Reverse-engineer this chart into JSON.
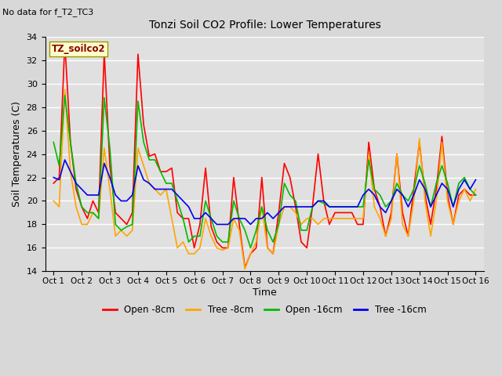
{
  "title": "Tonzi Soil CO2 Profile: Lower Temperatures",
  "subtitle": "No data for f_T2_TC3",
  "ylabel": "Soil Temperatures (C)",
  "xlabel": "Time",
  "annotation": "TZ_soilco2",
  "ylim": [
    14,
    34
  ],
  "yticks": [
    14,
    16,
    18,
    20,
    22,
    24,
    26,
    28,
    30,
    32,
    34
  ],
  "xtick_labels": [
    "Oct 1",
    "Oct 2",
    "Oct 3",
    "Oct 4",
    "Oct 5",
    "Oct 6",
    "Oct 7",
    "Oct 8",
    "Oct 9",
    "Oct 10",
    "Oct 11",
    "Oct 12",
    "Oct 13",
    "Oct 14",
    "Oct 15",
    "Oct 16"
  ],
  "background_color": "#d8d8d8",
  "plot_bg_color": "#e0e0e0",
  "grid_color": "#ffffff",
  "series": {
    "open_8cm": {
      "color": "#ff0000",
      "label": "Open -8cm",
      "linewidth": 1.2,
      "x": [
        0,
        0.2,
        0.4,
        0.6,
        0.8,
        1.0,
        1.2,
        1.4,
        1.6,
        1.8,
        2.0,
        2.2,
        2.4,
        2.6,
        2.8,
        3.0,
        3.2,
        3.4,
        3.6,
        3.8,
        4.0,
        4.2,
        4.4,
        4.6,
        4.8,
        5.0,
        5.2,
        5.4,
        5.6,
        5.8,
        6.0,
        6.2,
        6.4,
        6.6,
        6.8,
        7.0,
        7.2,
        7.4,
        7.6,
        7.8,
        8.0,
        8.2,
        8.4,
        8.6,
        8.8,
        9.0,
        9.2,
        9.4,
        9.6,
        9.8,
        10.0,
        10.2,
        10.4,
        10.6,
        10.8,
        11.0,
        11.2,
        11.4,
        11.6,
        11.8,
        12.0,
        12.2,
        12.4,
        12.6,
        12.8,
        13.0,
        13.2,
        13.4,
        13.6,
        13.8,
        14.0,
        14.2,
        14.4,
        14.6,
        14.8,
        15.0
      ],
      "y": [
        21.5,
        22.0,
        33.5,
        25.0,
        21.0,
        19.5,
        18.5,
        20.0,
        19.0,
        32.7,
        23.0,
        19.0,
        18.5,
        18.0,
        19.0,
        32.5,
        26.5,
        23.8,
        24.0,
        22.5,
        22.5,
        22.8,
        19.0,
        18.5,
        18.5,
        16.0,
        18.0,
        22.8,
        17.8,
        16.5,
        16.0,
        16.0,
        22.0,
        18.0,
        14.3,
        15.5,
        16.0,
        22.0,
        16.0,
        15.5,
        19.0,
        23.2,
        22.0,
        19.5,
        16.5,
        16.0,
        19.5,
        24.0,
        20.0,
        18.0,
        19.0,
        19.0,
        19.0,
        19.0,
        18.0,
        18.0,
        25.0,
        21.0,
        19.5,
        17.0,
        19.0,
        24.0,
        19.0,
        17.0,
        21.0,
        25.0,
        20.5,
        18.0,
        21.0,
        25.5,
        20.5,
        18.0,
        20.5,
        21.0,
        20.5,
        20.5
      ]
    },
    "tree_8cm": {
      "color": "#ffa500",
      "label": "Tree -8cm",
      "linewidth": 1.2,
      "x": [
        0,
        0.2,
        0.4,
        0.6,
        0.8,
        1.0,
        1.2,
        1.4,
        1.6,
        1.8,
        2.0,
        2.2,
        2.4,
        2.6,
        2.8,
        3.0,
        3.2,
        3.4,
        3.6,
        3.8,
        4.0,
        4.2,
        4.4,
        4.6,
        4.8,
        5.0,
        5.2,
        5.4,
        5.6,
        5.8,
        6.0,
        6.2,
        6.4,
        6.6,
        6.8,
        7.0,
        7.2,
        7.4,
        7.6,
        7.8,
        8.0,
        8.2,
        8.4,
        8.6,
        8.8,
        9.0,
        9.2,
        9.4,
        9.6,
        9.8,
        10.0,
        10.2,
        10.4,
        10.6,
        10.8,
        11.0,
        11.2,
        11.4,
        11.6,
        11.8,
        12.0,
        12.2,
        12.4,
        12.6,
        12.8,
        13.0,
        13.2,
        13.4,
        13.6,
        13.8,
        14.0,
        14.2,
        14.4,
        14.6,
        14.8,
        15.0
      ],
      "y": [
        20.0,
        19.5,
        29.5,
        22.5,
        19.5,
        18.0,
        18.0,
        19.0,
        18.5,
        24.5,
        21.0,
        17.0,
        17.5,
        17.0,
        17.5,
        24.5,
        23.0,
        21.5,
        21.0,
        20.5,
        21.0,
        18.5,
        16.0,
        16.5,
        15.5,
        15.5,
        16.0,
        18.5,
        17.0,
        16.0,
        15.8,
        16.0,
        18.5,
        17.5,
        14.2,
        15.5,
        16.5,
        19.5,
        16.0,
        15.5,
        18.0,
        19.5,
        19.5,
        19.0,
        18.0,
        18.5,
        18.5,
        18.0,
        18.5,
        18.5,
        18.5,
        18.5,
        18.5,
        18.5,
        18.5,
        18.5,
        24.0,
        19.5,
        18.5,
        17.0,
        18.5,
        24.0,
        18.0,
        17.0,
        20.0,
        25.3,
        20.0,
        17.0,
        20.0,
        25.0,
        20.0,
        18.0,
        20.0,
        21.0,
        20.0,
        21.0
      ]
    },
    "open_16cm": {
      "color": "#00bb00",
      "label": "Open -16cm",
      "linewidth": 1.2,
      "x": [
        0,
        0.2,
        0.4,
        0.6,
        0.8,
        1.0,
        1.2,
        1.4,
        1.6,
        1.8,
        2.0,
        2.2,
        2.4,
        2.6,
        2.8,
        3.0,
        3.2,
        3.4,
        3.6,
        3.8,
        4.0,
        4.2,
        4.4,
        4.6,
        4.8,
        5.0,
        5.2,
        5.4,
        5.6,
        5.8,
        6.0,
        6.2,
        6.4,
        6.6,
        6.8,
        7.0,
        7.2,
        7.4,
        7.6,
        7.8,
        8.0,
        8.2,
        8.4,
        8.6,
        8.8,
        9.0,
        9.2,
        9.4,
        9.6,
        9.8,
        10.0,
        10.2,
        10.4,
        10.6,
        10.8,
        11.0,
        11.2,
        11.4,
        11.6,
        11.8,
        12.0,
        12.2,
        12.4,
        12.6,
        12.8,
        13.0,
        13.2,
        13.4,
        13.6,
        13.8,
        14.0,
        14.2,
        14.4,
        14.6,
        14.8,
        15.0
      ],
      "y": [
        25.0,
        23.0,
        29.0,
        25.0,
        21.5,
        19.5,
        19.0,
        19.0,
        18.5,
        28.8,
        24.5,
        18.0,
        17.5,
        17.8,
        18.0,
        28.5,
        25.0,
        23.5,
        23.5,
        22.5,
        21.5,
        21.5,
        20.0,
        18.5,
        16.5,
        17.0,
        17.0,
        20.0,
        18.5,
        17.0,
        16.5,
        16.5,
        20.0,
        18.5,
        17.5,
        16.0,
        17.5,
        19.5,
        17.5,
        16.5,
        18.0,
        21.5,
        20.5,
        20.0,
        17.5,
        17.5,
        19.5,
        20.0,
        19.8,
        19.5,
        19.5,
        19.5,
        19.5,
        19.5,
        19.5,
        19.5,
        23.5,
        21.0,
        20.5,
        19.5,
        20.0,
        21.5,
        20.5,
        20.0,
        21.0,
        23.0,
        21.5,
        19.5,
        21.5,
        23.0,
        21.5,
        19.5,
        21.5,
        22.0,
        21.0,
        20.5
      ]
    },
    "tree_16cm": {
      "color": "#0000ee",
      "label": "Tree -16cm",
      "linewidth": 1.2,
      "x": [
        0,
        0.2,
        0.4,
        0.6,
        0.8,
        1.0,
        1.2,
        1.4,
        1.6,
        1.8,
        2.0,
        2.2,
        2.4,
        2.6,
        2.8,
        3.0,
        3.2,
        3.4,
        3.6,
        3.8,
        4.0,
        4.2,
        4.4,
        4.6,
        4.8,
        5.0,
        5.2,
        5.4,
        5.6,
        5.8,
        6.0,
        6.2,
        6.4,
        6.6,
        6.8,
        7.0,
        7.2,
        7.4,
        7.6,
        7.8,
        8.0,
        8.2,
        8.4,
        8.6,
        8.8,
        9.0,
        9.2,
        9.4,
        9.6,
        9.8,
        10.0,
        10.2,
        10.4,
        10.6,
        10.8,
        11.0,
        11.2,
        11.4,
        11.6,
        11.8,
        12.0,
        12.2,
        12.4,
        12.6,
        12.8,
        13.0,
        13.2,
        13.4,
        13.6,
        13.8,
        14.0,
        14.2,
        14.4,
        14.6,
        14.8,
        15.0
      ],
      "y": [
        22.0,
        21.8,
        23.5,
        22.5,
        21.5,
        21.0,
        20.5,
        20.5,
        20.5,
        23.2,
        22.0,
        20.5,
        20.0,
        20.0,
        20.5,
        23.0,
        21.8,
        21.5,
        21.0,
        21.0,
        21.0,
        21.0,
        20.5,
        20.0,
        19.5,
        18.5,
        18.5,
        19.0,
        18.5,
        18.0,
        18.0,
        18.0,
        18.5,
        18.5,
        18.5,
        18.0,
        18.5,
        18.5,
        19.0,
        18.5,
        19.0,
        19.5,
        19.5,
        19.5,
        19.5,
        19.5,
        19.5,
        20.0,
        20.0,
        19.5,
        19.5,
        19.5,
        19.5,
        19.5,
        19.5,
        20.5,
        21.0,
        20.5,
        19.5,
        19.0,
        20.0,
        21.0,
        20.5,
        19.5,
        20.5,
        21.8,
        21.0,
        19.5,
        20.5,
        21.5,
        21.0,
        19.5,
        21.0,
        21.8,
        21.0,
        21.8
      ]
    }
  }
}
